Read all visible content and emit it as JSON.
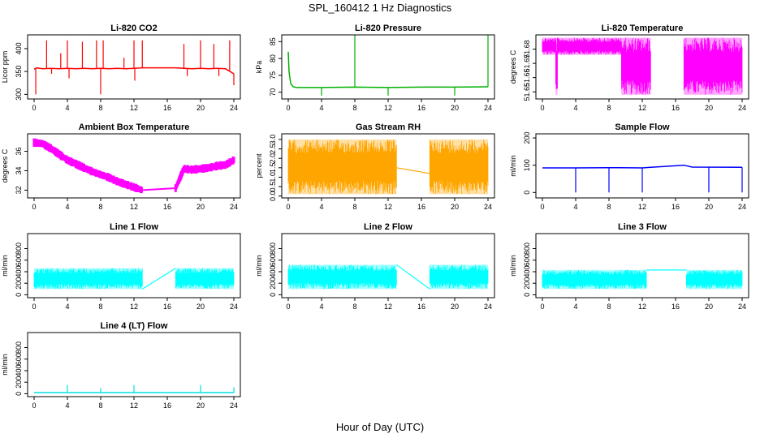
{
  "figure": {
    "title": "SPL_160412  1 Hz Diagnostics",
    "xlabel": "Hour of Day (UTC)"
  },
  "chart_data": [
    {
      "type": "line",
      "title": "Li-820 CO2",
      "ylabel": "Licor ppm",
      "color": "#ff0000",
      "xlim": [
        0,
        24
      ],
      "ylim": [
        290,
        430
      ],
      "xticks": [
        "0",
        "4",
        "8",
        "12",
        "16",
        "20",
        "24"
      ],
      "yticks": [
        {
          "v": 300,
          "l": "300"
        },
        {
          "v": 350,
          "l": "350"
        },
        {
          "v": 400,
          "l": "400"
        }
      ],
      "series": [
        {
          "name": "CO2",
          "x": [
            0,
            0.3,
            1,
            2,
            3,
            4,
            5,
            6,
            7,
            8,
            9,
            10,
            11,
            12,
            13,
            17,
            18,
            19,
            20,
            21,
            22,
            23,
            24
          ],
          "y": [
            355,
            358,
            356,
            357,
            356,
            357,
            356,
            357,
            356,
            357,
            356,
            357,
            356,
            357,
            358,
            358,
            357,
            356,
            357,
            356,
            357,
            356,
            345
          ]
        }
      ],
      "spikes": [
        {
          "x": 0.2,
          "y": 300
        },
        {
          "x": 1.5,
          "y": 418
        },
        {
          "x": 2.1,
          "y": 345
        },
        {
          "x": 3.2,
          "y": 390
        },
        {
          "x": 4,
          "y": 418
        },
        {
          "x": 4.2,
          "y": 335
        },
        {
          "x": 5.8,
          "y": 415
        },
        {
          "x": 7.5,
          "y": 418
        },
        {
          "x": 8,
          "y": 300
        },
        {
          "x": 8.3,
          "y": 418
        },
        {
          "x": 10.8,
          "y": 380
        },
        {
          "x": 12,
          "y": 418
        },
        {
          "x": 12.1,
          "y": 330
        },
        {
          "x": 13,
          "y": 418
        },
        {
          "x": 18,
          "y": 410
        },
        {
          "x": 18.4,
          "y": 340
        },
        {
          "x": 20,
          "y": 418
        },
        {
          "x": 21.6,
          "y": 410
        },
        {
          "x": 22.2,
          "y": 340
        },
        {
          "x": 23.5,
          "y": 418
        },
        {
          "x": 24,
          "y": 320
        }
      ]
    },
    {
      "type": "line",
      "title": "Li-820 Pressure",
      "ylabel": "kPa",
      "color": "#00b000",
      "xlim": [
        0,
        24
      ],
      "ylim": [
        68,
        87
      ],
      "xticks": [
        "0",
        "4",
        "8",
        "12",
        "16",
        "20",
        "24"
      ],
      "yticks": [
        {
          "v": 70,
          "l": "70"
        },
        {
          "v": 75,
          "l": "75"
        },
        {
          "v": 80,
          "l": "80"
        },
        {
          "v": 85,
          "l": "85"
        }
      ],
      "series": [
        {
          "name": "Pressure",
          "x": [
            0,
            0.1,
            0.3,
            0.6,
            1,
            4,
            8,
            12,
            16,
            20,
            24
          ],
          "y": [
            82,
            76,
            72.5,
            71.6,
            71.4,
            71.4,
            71.5,
            71.4,
            71.5,
            71.5,
            71.6
          ]
        }
      ],
      "spikes": [
        {
          "x": 4,
          "y": 69
        },
        {
          "x": 8,
          "y": 87
        },
        {
          "x": 12,
          "y": 69
        },
        {
          "x": 20,
          "y": 69
        },
        {
          "x": 24,
          "y": 87
        }
      ]
    },
    {
      "type": "area",
      "title": "Li-820 Temperature",
      "ylabel": "degrees C",
      "color": "#ff00ff",
      "xlim": [
        0,
        24
      ],
      "ylim": [
        51.645,
        51.69
      ],
      "xticks": [
        "0",
        "4",
        "8",
        "12",
        "16",
        "20",
        "24"
      ],
      "yticks": [
        {
          "v": 51.65,
          "l": "51.65"
        },
        {
          "v": 51.66,
          "l": "51.66"
        },
        {
          "v": 51.67,
          "l": "51.67"
        },
        {
          "v": 51.68,
          "l": "51.68"
        }
      ],
      "bands": [
        {
          "x0": 0,
          "x1": 1.6,
          "ylow": 51.676,
          "yhigh": 51.688
        },
        {
          "x0": 1.6,
          "x1": 1.8,
          "ylow": 51.648,
          "yhigh": 51.688
        },
        {
          "x0": 1.8,
          "x1": 9.5,
          "ylow": 51.676,
          "yhigh": 51.688
        },
        {
          "x0": 9.5,
          "x1": 13.0,
          "ylow": 51.648,
          "yhigh": 51.688
        },
        {
          "x0": 17.0,
          "x1": 24,
          "ylow": 51.648,
          "yhigh": 51.688
        }
      ]
    },
    {
      "type": "area",
      "title": "Ambient Box Temperature",
      "ylabel": "degrees C",
      "color": "#ff00ff",
      "xlim": [
        0,
        24
      ],
      "ylim": [
        31.2,
        37.8
      ],
      "xticks": [
        "0",
        "4",
        "8",
        "12",
        "16",
        "20",
        "24"
      ],
      "yticks": [
        {
          "v": 32,
          "l": "32"
        },
        {
          "v": 34,
          "l": "34"
        },
        {
          "v": 36,
          "l": "36"
        }
      ],
      "series": [
        {
          "name": "Ambient",
          "x": [
            0,
            1,
            2,
            3,
            4,
            5,
            6,
            7,
            8,
            9,
            10,
            11,
            12,
            13,
            17,
            18,
            19,
            20,
            21,
            22,
            23,
            24
          ],
          "y": [
            36.9,
            36.8,
            36.3,
            35.7,
            35.1,
            34.7,
            34.3,
            33.9,
            33.6,
            33.3,
            32.9,
            32.6,
            32.3,
            32.0,
            32.2,
            34.2,
            34.1,
            34.2,
            34.3,
            34.5,
            34.6,
            35.1
          ]
        }
      ],
      "amplitude": 0.45
    },
    {
      "type": "area",
      "title": "Gas Stream RH",
      "ylabel": "percent",
      "color": "#ffa500",
      "xlim": [
        0,
        24
      ],
      "ylim": [
        -0.1,
        3.3
      ],
      "xticks": [
        "0",
        "4",
        "8",
        "12",
        "16",
        "20",
        "24"
      ],
      "yticks": [
        {
          "v": 0,
          "l": "0.0"
        },
        {
          "v": 0.5,
          "l": "0.5"
        },
        {
          "v": 1,
          "l": "1.0"
        },
        {
          "v": 1.5,
          "l": "1.5"
        },
        {
          "v": 2,
          "l": "2.0"
        },
        {
          "v": 2.5,
          "l": "2.5"
        },
        {
          "v": 3,
          "l": "3.0"
        }
      ],
      "bands": [
        {
          "x0": 0,
          "x1": 13,
          "ylow": 0.1,
          "yhigh": 3.0
        },
        {
          "x0": 17,
          "x1": 24,
          "ylow": 0.1,
          "yhigh": 3.0
        }
      ],
      "gap_line": {
        "x": [
          13,
          17
        ],
        "y": [
          1.5,
          1.2
        ]
      }
    },
    {
      "type": "line",
      "title": "Sample Flow",
      "ylabel": "ml/min",
      "color": "#0000ff",
      "xlim": [
        0,
        24
      ],
      "ylim": [
        -20,
        215
      ],
      "xticks": [
        "0",
        "4",
        "8",
        "12",
        "16",
        "20",
        "24"
      ],
      "yticks": [
        {
          "v": 0,
          "l": "0"
        },
        {
          "v": 100,
          "l": "100"
        },
        {
          "v": 200,
          "l": "200"
        }
      ],
      "series": [
        {
          "name": "Sample",
          "x": [
            0,
            4,
            8,
            12,
            13,
            17,
            18,
            24
          ],
          "y": [
            90,
            90,
            91,
            90,
            92,
            100,
            93,
            92
          ]
        }
      ],
      "spikes": [
        {
          "x": 4,
          "y": 0
        },
        {
          "x": 8,
          "y": 0
        },
        {
          "x": 12,
          "y": 0
        },
        {
          "x": 20,
          "y": 0
        },
        {
          "x": 24,
          "y": 0
        }
      ]
    },
    {
      "type": "area",
      "title": "Line 1 Flow",
      "ylabel": "ml/min",
      "color": "#00ffff",
      "xlim": [
        0,
        24
      ],
      "ylim": [
        -50,
        1060
      ],
      "xticks": [
        "0",
        "4",
        "8",
        "12",
        "16",
        "20",
        "24"
      ],
      "yticks": [
        {
          "v": 0,
          "l": "0"
        },
        {
          "v": 200,
          "l": "200"
        },
        {
          "v": 400,
          "l": "400"
        },
        {
          "v": 600,
          "l": "600"
        },
        {
          "v": 800,
          "l": "800"
        }
      ],
      "bands": [
        {
          "x0": 0,
          "x1": 13,
          "ylow": 100,
          "yhigh": 460
        },
        {
          "x0": 17,
          "x1": 24,
          "ylow": 100,
          "yhigh": 460
        }
      ],
      "gap_line": {
        "x": [
          13,
          17
        ],
        "y": [
          100,
          460
        ]
      }
    },
    {
      "type": "area",
      "title": "Line 2 Flow",
      "ylabel": "ml/min",
      "color": "#00ffff",
      "xlim": [
        0,
        24
      ],
      "ylim": [
        -50,
        1060
      ],
      "xticks": [
        "0",
        "4",
        "8",
        "12",
        "16",
        "20",
        "24"
      ],
      "yticks": [
        {
          "v": 0,
          "l": "0"
        },
        {
          "v": 200,
          "l": "200"
        },
        {
          "v": 400,
          "l": "400"
        },
        {
          "v": 600,
          "l": "600"
        },
        {
          "v": 800,
          "l": "800"
        }
      ],
      "bands": [
        {
          "x0": 0,
          "x1": 13,
          "ylow": 100,
          "yhigh": 520
        },
        {
          "x0": 17,
          "x1": 24,
          "ylow": 100,
          "yhigh": 520
        }
      ],
      "gap_line": {
        "x": [
          13,
          17
        ],
        "y": [
          520,
          100
        ]
      }
    },
    {
      "type": "area",
      "title": "Line 3 Flow",
      "ylabel": "ml/min",
      "color": "#00ffff",
      "xlim": [
        0,
        24
      ],
      "ylim": [
        -50,
        1060
      ],
      "xticks": [
        "0",
        "4",
        "8",
        "12",
        "16",
        "20",
        "24"
      ],
      "yticks": [
        {
          "v": 0,
          "l": "0"
        },
        {
          "v": 200,
          "l": "200"
        },
        {
          "v": 400,
          "l": "400"
        },
        {
          "v": 600,
          "l": "600"
        },
        {
          "v": 800,
          "l": "800"
        }
      ],
      "bands": [
        {
          "x0": 0,
          "x1": 12.5,
          "ylow": 100,
          "yhigh": 430
        },
        {
          "x0": 17.3,
          "x1": 24,
          "ylow": 100,
          "yhigh": 430
        }
      ],
      "gap_line": {
        "x": [
          12.5,
          17.3
        ],
        "y": [
          430,
          430
        ]
      }
    },
    {
      "type": "line",
      "title": "Line 4 (LT) Flow",
      "ylabel": "ml/min",
      "color": "#00e0e0",
      "xlim": [
        0,
        24
      ],
      "ylim": [
        -50,
        1060
      ],
      "xticks": [
        "0",
        "4",
        "8",
        "12",
        "16",
        "20",
        "24"
      ],
      "yticks": [
        {
          "v": 0,
          "l": "0"
        },
        {
          "v": 200,
          "l": "200"
        },
        {
          "v": 400,
          "l": "400"
        },
        {
          "v": 600,
          "l": "600"
        },
        {
          "v": 800,
          "l": "800"
        }
      ],
      "series": [
        {
          "name": "Line4",
          "x": [
            0,
            24
          ],
          "y": [
            20,
            20
          ]
        }
      ],
      "spikes": [
        {
          "x": 4,
          "y": 150
        },
        {
          "x": 8,
          "y": 100
        },
        {
          "x": 12,
          "y": 150
        },
        {
          "x": 20,
          "y": 150
        },
        {
          "x": 24,
          "y": 110
        }
      ]
    }
  ]
}
